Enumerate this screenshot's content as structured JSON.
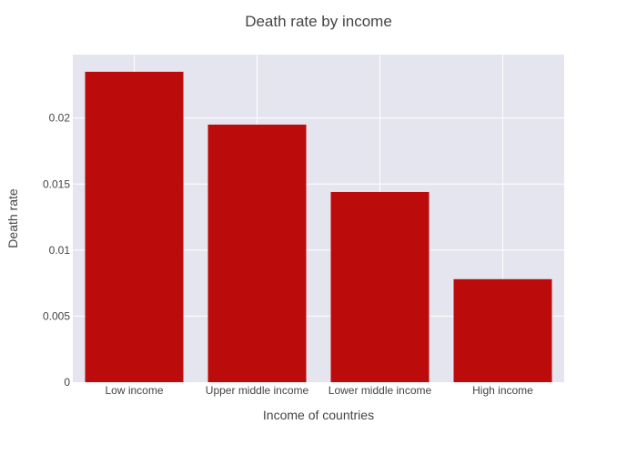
{
  "chart_data": {
    "type": "bar",
    "title": "Death rate by income",
    "xlabel": "Income of countries",
    "ylabel": "Death rate",
    "categories": [
      "Low income",
      "Upper middle income",
      "Lower middle income",
      "High income"
    ],
    "values": [
      0.0235,
      0.0195,
      0.0144,
      0.0078
    ],
    "ylim": [
      0,
      0.0248
    ],
    "yticks": [
      0,
      0.005,
      0.01,
      0.015,
      0.02
    ],
    "ytick_labels": [
      "0",
      "0.005",
      "0.01",
      "0.015",
      "0.02"
    ],
    "grid": true,
    "bar_color": "#bb0b0b",
    "plot_background": "#e5e5ef",
    "grid_color": "#ffffff"
  }
}
